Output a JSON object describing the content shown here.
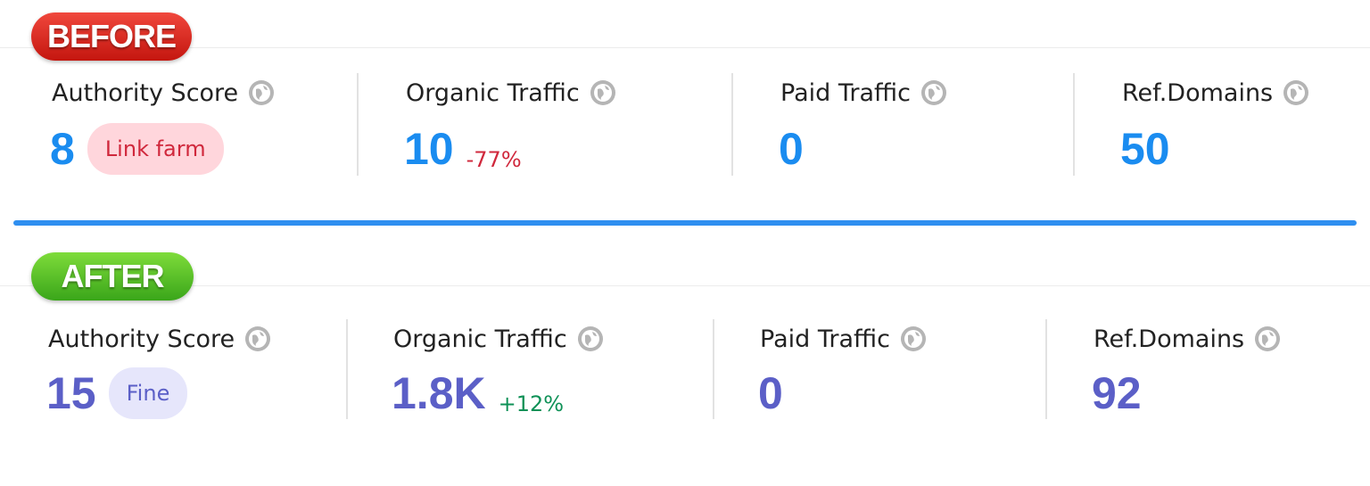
{
  "panels": [
    {
      "label": "BEFORE",
      "metrics": [
        {
          "title": "Authority Score",
          "value": "8",
          "tag": "Link farm"
        },
        {
          "title": "Organic Traffic",
          "value": "10",
          "change": "-77%"
        },
        {
          "title": "Paid Traffic",
          "value": "0"
        },
        {
          "title": "Ref.Domains",
          "value": "50"
        }
      ]
    },
    {
      "label": "AFTER",
      "metrics": [
        {
          "title": "Authority Score",
          "value": "15",
          "tag": "Fine"
        },
        {
          "title": "Organic Traffic",
          "value": "1.8K",
          "change": "+12%"
        },
        {
          "title": "Paid Traffic",
          "value": "0"
        },
        {
          "title": "Ref.Domains",
          "value": "92"
        }
      ]
    }
  ]
}
